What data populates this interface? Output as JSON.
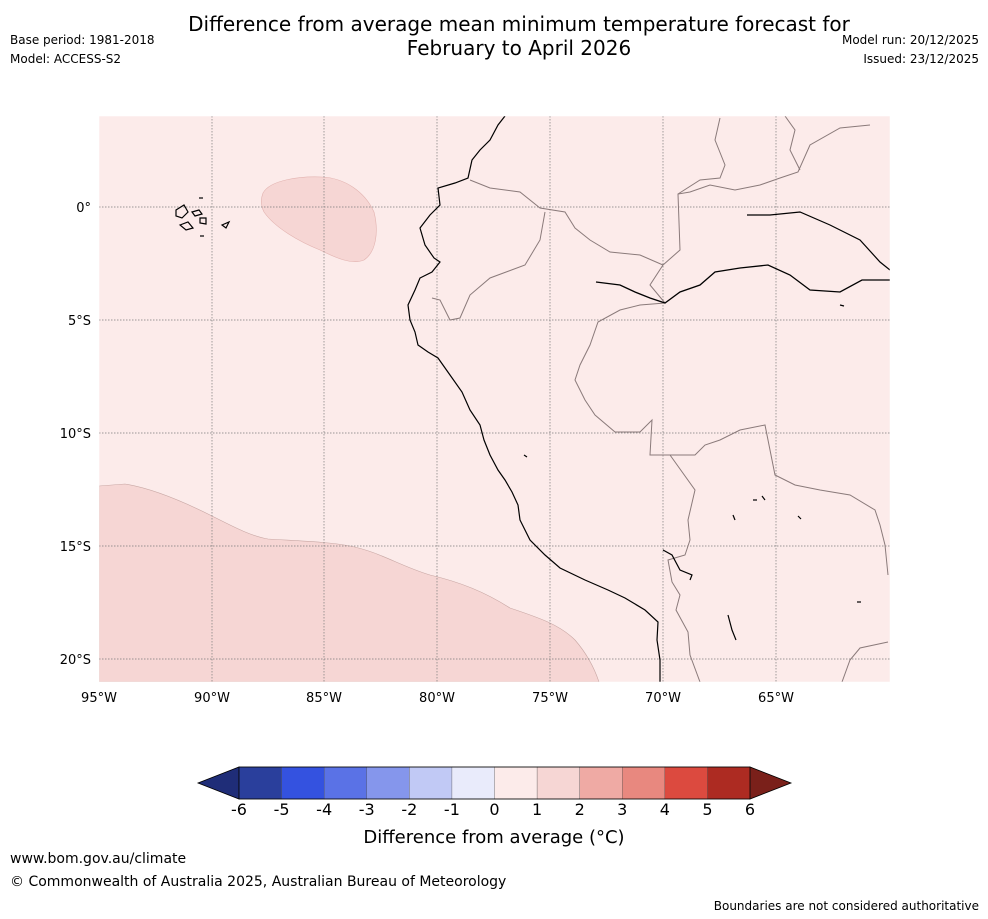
{
  "header": {
    "title_line1": "Difference from average mean minimum temperature forecast for",
    "title_line2": "February to April 2026",
    "base_period": "Base period: 1981-2018",
    "model": "Model: ACCESS-S2",
    "model_run": "Model run: 20/12/2025",
    "issued": "Issued: 23/12/2025"
  },
  "map": {
    "lat_labels": [
      "0°",
      "5°S",
      "10°S",
      "15°S",
      "20°S"
    ],
    "lon_labels": [
      "95°W",
      "90°W",
      "85°W",
      "80°W",
      "75°W",
      "70°W",
      "65°W"
    ],
    "background_category": "0 to 1",
    "anomaly_regions": [
      {
        "area": "offshore Ecuador, near 85°W 0-2°S",
        "category": "1 to 2"
      },
      {
        "area": "south-east Pacific, 95°W-73°W, 13°S-21°S",
        "category": "1 to 2"
      }
    ]
  },
  "colorbar": {
    "ticks": [
      "-6",
      "-5",
      "-4",
      "-3",
      "-2",
      "-1",
      "0",
      "1",
      "2",
      "3",
      "4",
      "5",
      "6"
    ],
    "colors": [
      "#2a3f9c",
      "#3452e0",
      "#5a72e6",
      "#8596ec",
      "#c1c9f5",
      "#e9ebfb",
      "#fcebea",
      "#f6d6d4",
      "#efaaa4",
      "#e8887f",
      "#dc4a3f",
      "#ad2b22"
    ],
    "under_color": "#1f2d78",
    "over_color": "#7a201a",
    "label": "Difference from average (°C)"
  },
  "footer": {
    "url": "www.bom.gov.au/climate",
    "copyright": "© Commonwealth of Australia 2025, Australian Bureau of Meteorology",
    "disclaimer": "Boundaries are not considered authoritative"
  }
}
